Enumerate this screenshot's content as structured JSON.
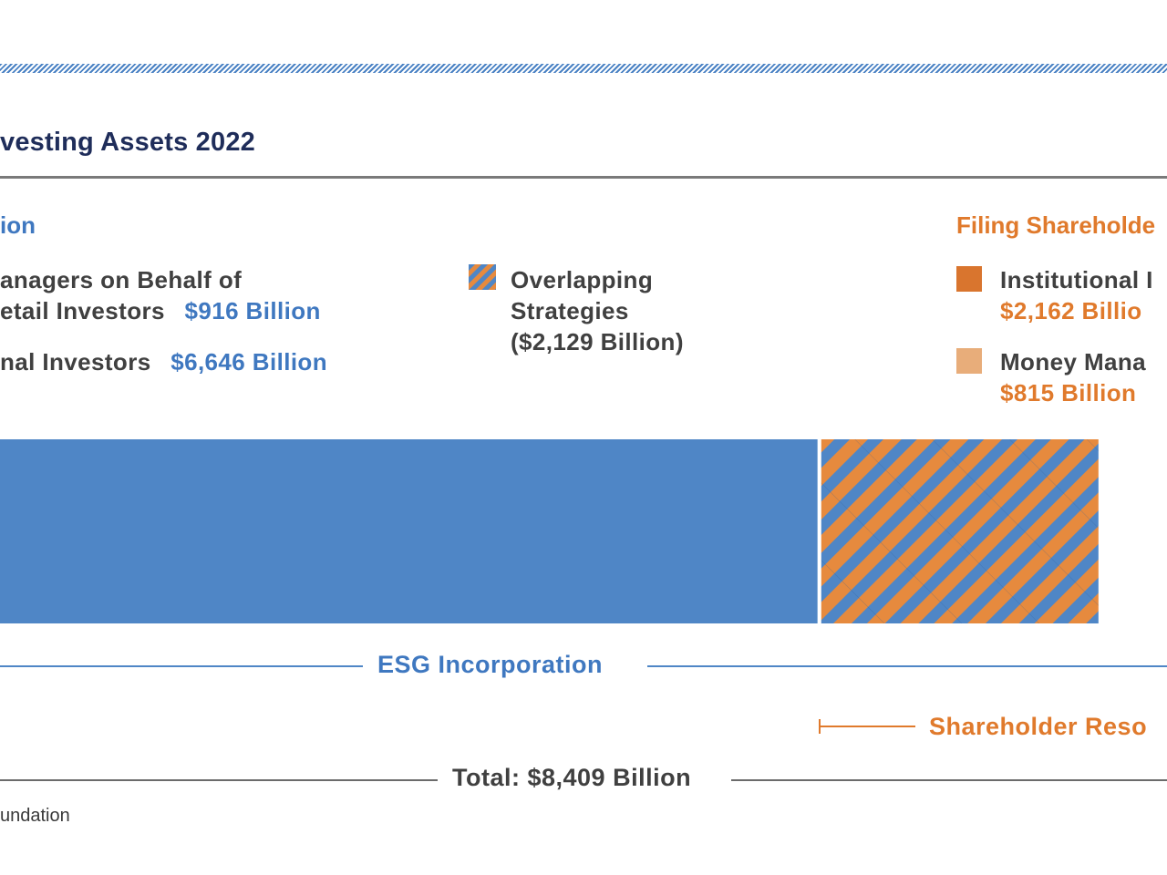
{
  "chart_data": {
    "type": "bar",
    "title": "vesting Assets 2022",
    "series": [
      {
        "name": "ESG Incorporation",
        "values": [
          6646,
          916
        ]
      },
      {
        "name": "Overlapping Strategies",
        "values": [
          2129
        ]
      },
      {
        "name": "Filing Shareholder Resolutions",
        "values": [
          2162,
          815
        ]
      }
    ],
    "segments": [
      {
        "label": "ESG Incorporation",
        "value": 6280,
        "fill": "#4f86c6"
      },
      {
        "label": "Overlapping Strategies",
        "value": 2129,
        "fill": "hatch"
      }
    ],
    "total": 8409,
    "legend": {
      "left_heading": "ion",
      "left_items": [
        {
          "text_line1": "anagers on Behalf of",
          "text_line2": "etail Investors",
          "value": "$916 Billion"
        },
        {
          "text_line1": "nal Investors",
          "value": "$6,646 Billion"
        }
      ],
      "overlap_item": {
        "line1": "Overlapping",
        "line2": "Strategies",
        "line3": "($2,129 Billion)"
      },
      "right_heading": "Filing Shareholde",
      "right_items": [
        {
          "text": "Institutional I",
          "value": "$2,162 Billio",
          "color": "#d9752e"
        },
        {
          "text": "Money Mana",
          "value": "$815 Billion",
          "color": "#e8ad7a"
        }
      ]
    },
    "brackets": {
      "esg": "ESG Incorporation",
      "shareholder": "Shareholder Reso",
      "total": "Total: $8,409 Billion"
    },
    "colors": {
      "blue": "#4f86c6",
      "orange": "#e68a3e",
      "grey": "#6b6b6b"
    }
  },
  "footer": {
    "source": "undation"
  }
}
